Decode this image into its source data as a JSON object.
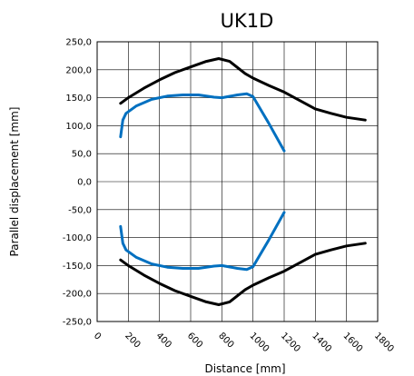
{
  "chart_data": {
    "type": "line",
    "title": "UK1D",
    "xlabel": "Distance  [mm]",
    "ylabel": "Parallel displacement [mm]",
    "xlim": [
      0,
      1800
    ],
    "ylim": [
      -250,
      250
    ],
    "x_ticks": [
      0,
      200,
      400,
      600,
      800,
      1000,
      1200,
      1400,
      1600,
      1800
    ],
    "x_tick_labels": [
      "0",
      "200",
      "400",
      "600",
      "800",
      "1000",
      "1200",
      "1400",
      "1600",
      "1800"
    ],
    "y_ticks": [
      250,
      200,
      150,
      100,
      50,
      0,
      -50,
      -100,
      -150,
      -200,
      -250
    ],
    "y_tick_labels": [
      "250,0",
      "200,0",
      "150,0",
      "100,0",
      "50,0",
      "0,0",
      "-50,0",
      "-100,0",
      "-150,0",
      "-200,0",
      "-250,0"
    ],
    "grid": "vertical and horizontal",
    "legend": "none",
    "series": [
      {
        "color": "#000000",
        "points": [
          [
            150,
            140
          ],
          [
            200,
            150
          ],
          [
            300,
            167
          ],
          [
            400,
            182
          ],
          [
            500,
            195
          ],
          [
            600,
            205
          ],
          [
            700,
            215
          ],
          [
            780,
            220
          ],
          [
            850,
            215
          ],
          [
            950,
            193
          ],
          [
            1000,
            185
          ],
          [
            1100,
            172
          ],
          [
            1200,
            160
          ],
          [
            1300,
            145
          ],
          [
            1400,
            130
          ],
          [
            1500,
            122
          ],
          [
            1600,
            115
          ],
          [
            1720,
            110
          ]
        ]
      },
      {
        "color": "#000000",
        "points": [
          [
            150,
            -140
          ],
          [
            200,
            -150
          ],
          [
            300,
            -167
          ],
          [
            400,
            -182
          ],
          [
            500,
            -195
          ],
          [
            600,
            -205
          ],
          [
            700,
            -215
          ],
          [
            780,
            -220
          ],
          [
            850,
            -215
          ],
          [
            950,
            -193
          ],
          [
            1000,
            -185
          ],
          [
            1100,
            -172
          ],
          [
            1200,
            -160
          ],
          [
            1300,
            -145
          ],
          [
            1400,
            -130
          ],
          [
            1500,
            -122
          ],
          [
            1600,
            -115
          ],
          [
            1720,
            -110
          ]
        ]
      },
      {
        "color": "#0070C0",
        "points": [
          [
            150,
            80
          ],
          [
            165,
            110
          ],
          [
            185,
            122
          ],
          [
            250,
            135
          ],
          [
            350,
            147
          ],
          [
            450,
            153
          ],
          [
            550,
            155
          ],
          [
            650,
            155
          ],
          [
            750,
            151
          ],
          [
            800,
            150
          ],
          [
            900,
            155
          ],
          [
            960,
            157
          ],
          [
            1000,
            152
          ],
          [
            1100,
            105
          ],
          [
            1200,
            55
          ]
        ]
      },
      {
        "color": "#0070C0",
        "points": [
          [
            150,
            -80
          ],
          [
            165,
            -110
          ],
          [
            185,
            -122
          ],
          [
            250,
            -135
          ],
          [
            350,
            -147
          ],
          [
            450,
            -153
          ],
          [
            550,
            -155
          ],
          [
            650,
            -155
          ],
          [
            750,
            -151
          ],
          [
            800,
            -150
          ],
          [
            900,
            -155
          ],
          [
            960,
            -157
          ],
          [
            1000,
            -152
          ],
          [
            1100,
            -105
          ],
          [
            1200,
            -55
          ]
        ]
      }
    ]
  }
}
